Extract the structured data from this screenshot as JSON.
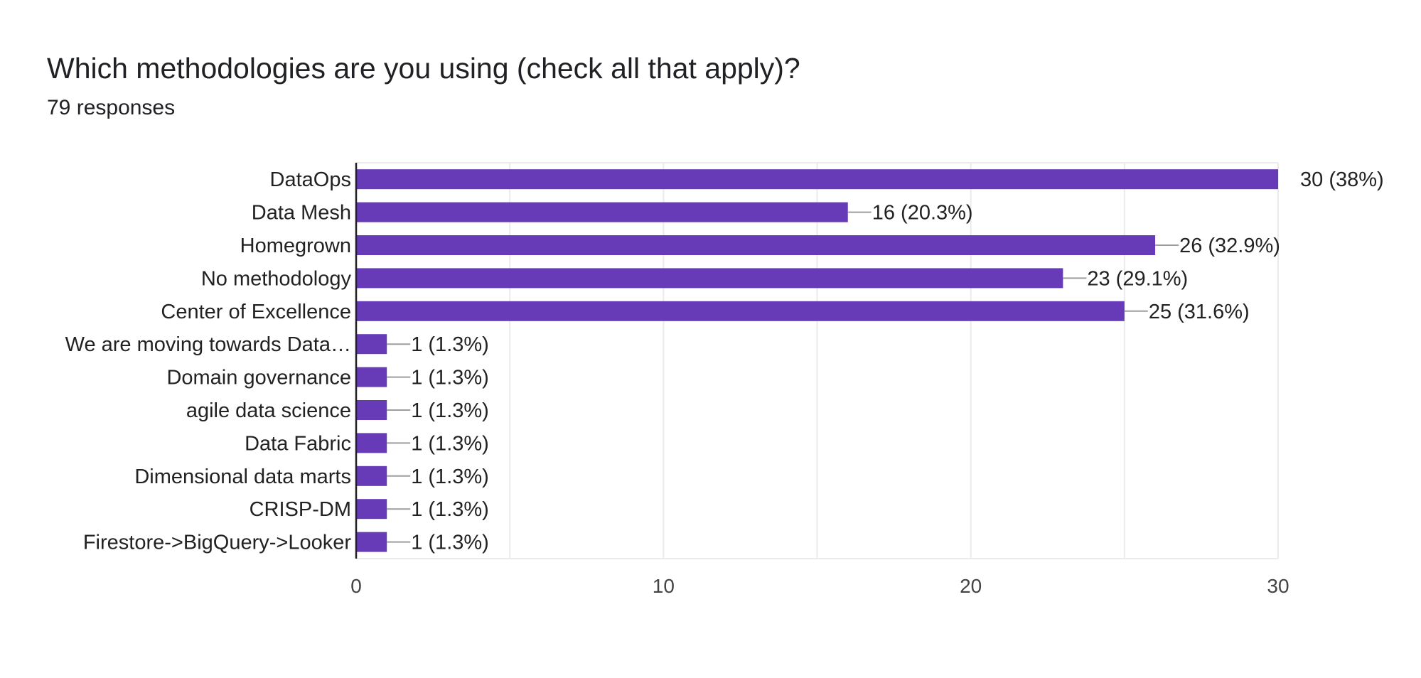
{
  "question": {
    "title": "Which methodologies are you using (check all that apply)?",
    "responses_label": "79 responses"
  },
  "colors": {
    "bar": "#673ab7",
    "grid": "#ebebeb",
    "axis": "#202124",
    "label_text": "#222222",
    "tick_text": "#444444",
    "leader": "#9e9e9e"
  },
  "chart_data": {
    "type": "bar",
    "orientation": "horizontal",
    "title": "",
    "xlabel": "",
    "ylabel": "",
    "xlim": [
      0,
      30
    ],
    "x_ticks": [
      "0",
      "10",
      "20",
      "30"
    ],
    "grid": true,
    "legend": "none",
    "categories": [
      "DataOps",
      "Data Mesh",
      "Homegrown",
      "No methodology",
      "Center of Excellence",
      "We are moving towards Data…",
      "Domain governance",
      "agile data science",
      "Data Fabric",
      "Dimensional data marts",
      "CRISP-DM",
      "Firestore->BigQuery->Looker"
    ],
    "values": [
      30,
      16,
      26,
      23,
      25,
      1,
      1,
      1,
      1,
      1,
      1,
      1
    ],
    "data_labels": [
      "30 (38%)",
      "16 (20.3%)",
      "26 (32.9%)",
      "23 (29.1%)",
      "25 (31.6%)",
      "1 (1.3%)",
      "1 (1.3%)",
      "1 (1.3%)",
      "1 (1.3%)",
      "1 (1.3%)",
      "1 (1.3%)",
      "1 (1.3%)"
    ]
  }
}
